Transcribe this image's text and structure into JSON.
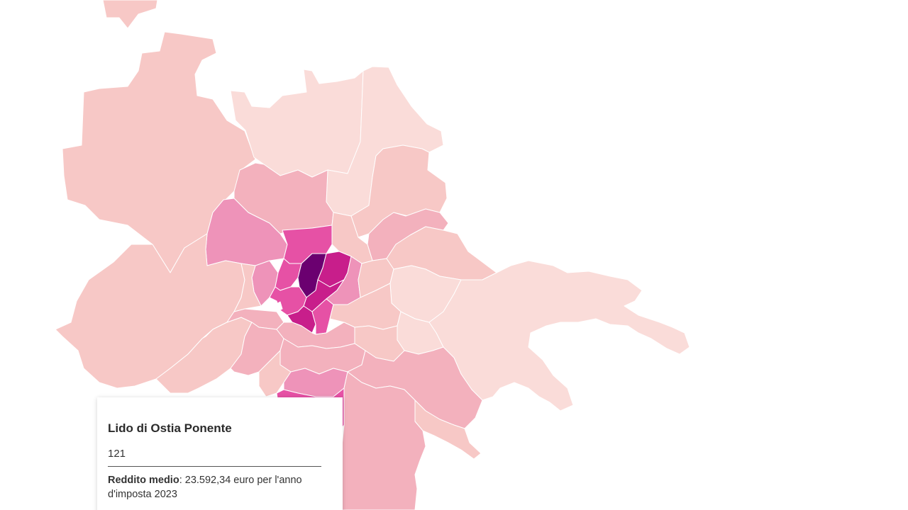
{
  "tooltip": {
    "title": "Lido di Ostia Ponente",
    "code": "121",
    "income_label": "Reddito medio",
    "income_value": ": 23.592,34 euro per l'anno d'imposta 2023"
  },
  "colors": {
    "lightest": "#fadcd9",
    "light": "#f7c8c6",
    "medium_light": "#f3b1bd",
    "medium": "#ee93b9",
    "strong": "#e651a5",
    "deep": "#c81e8b",
    "darkest": "#6b0070",
    "gap": "#ffffff"
  }
}
